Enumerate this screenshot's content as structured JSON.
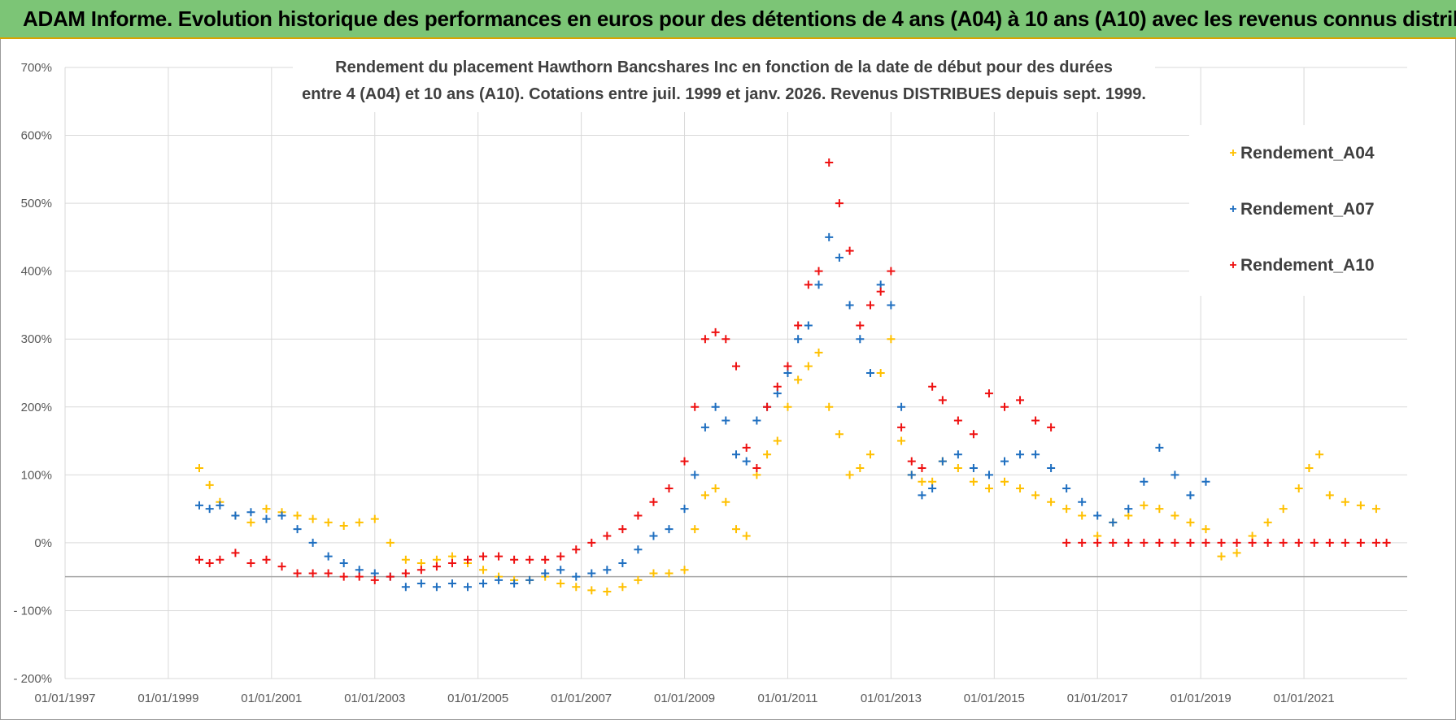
{
  "banner": {
    "title": "ADAM Informe. Evolution historique des performances en euros pour des détentions de 4 ans (A04) à 10 ans (A10) avec les revenus connus distribués"
  },
  "chart_data": {
    "type": "scatter",
    "title_line1": "Rendement du placement Hawthorn Bancshares Inc en fonction de la date de début pour des durées",
    "title_line2": "entre 4 (A04) et 10 ans (A10).  Cotations entre juil. 1999 et janv. 2026. Revenus DISTRIBUES depuis sept. 1999.",
    "xlabel": "",
    "ylabel": "",
    "x_unit": "year",
    "xlim": [
      1997.0,
      2023.0
    ],
    "ylim": [
      -200,
      700
    ],
    "y_ticks": [
      -200,
      -100,
      0,
      100,
      200,
      300,
      400,
      500,
      600,
      700
    ],
    "y_tick_labels": [
      "- 200%",
      "- 100%",
      "0%",
      "100%",
      "200%",
      "300%",
      "400%",
      "500%",
      "600%",
      "700%"
    ],
    "x_ticks": [
      1997,
      1999,
      2001,
      2003,
      2005,
      2007,
      2009,
      2011,
      2013,
      2015,
      2017,
      2019,
      2021
    ],
    "x_tick_labels": [
      "01/01/1997",
      "01/01/1999",
      "01/01/2001",
      "01/01/2003",
      "01/01/2005",
      "01/01/2007",
      "01/01/2009",
      "01/01/2011",
      "01/01/2013",
      "01/01/2015",
      "01/01/2017",
      "01/01/2019",
      "01/01/2021"
    ],
    "reference_line_y": -50,
    "legend_position": "top-right",
    "marker": "+",
    "series": [
      {
        "name": "Rendement_A04",
        "color": "#ffc000",
        "x": [
          1999.6,
          1999.8,
          2000.0,
          2000.3,
          2000.6,
          2000.9,
          2001.2,
          2001.5,
          2001.8,
          2002.1,
          2002.4,
          2002.7,
          2003.0,
          2003.3,
          2003.6,
          2003.9,
          2004.2,
          2004.5,
          2004.8,
          2005.1,
          2005.4,
          2005.7,
          2006.0,
          2006.3,
          2006.6,
          2006.9,
          2007.2,
          2007.5,
          2007.8,
          2008.1,
          2008.4,
          2008.7,
          2009.0,
          2009.2,
          2009.4,
          2009.6,
          2009.8,
          2010.0,
          2010.2,
          2010.4,
          2010.6,
          2010.8,
          2011.0,
          2011.2,
          2011.4,
          2011.6,
          2011.8,
          2012.0,
          2012.2,
          2012.4,
          2012.6,
          2012.8,
          2013.0,
          2013.2,
          2013.4,
          2013.6,
          2013.8,
          2014.0,
          2014.3,
          2014.6,
          2014.9,
          2015.2,
          2015.5,
          2015.8,
          2016.1,
          2016.4,
          2016.7,
          2017.0,
          2017.3,
          2017.6,
          2017.9,
          2018.2,
          2018.5,
          2018.8,
          2019.1,
          2019.4,
          2019.7,
          2020.0,
          2020.3,
          2020.6,
          2020.9,
          2021.1,
          2021.3,
          2021.5,
          2021.8,
          2022.1,
          2022.4
        ],
        "y": [
          110,
          85,
          60,
          40,
          30,
          50,
          45,
          40,
          35,
          30,
          25,
          30,
          35,
          0,
          -25,
          -30,
          -25,
          -20,
          -30,
          -40,
          -50,
          -55,
          -55,
          -50,
          -60,
          -65,
          -70,
          -72,
          -65,
          -55,
          -45,
          -45,
          -40,
          20,
          70,
          80,
          60,
          20,
          10,
          100,
          130,
          150,
          200,
          240,
          260,
          280,
          200,
          160,
          100,
          110,
          130,
          250,
          300,
          150,
          100,
          90,
          90,
          120,
          110,
          90,
          80,
          90,
          80,
          70,
          60,
          50,
          40,
          10,
          30,
          40,
          55,
          50,
          40,
          30,
          20,
          -20,
          -15,
          10,
          30,
          50,
          80,
          110,
          130,
          70,
          60,
          55,
          50
        ]
      },
      {
        "name": "Rendement_A07",
        "color": "#1f6fc0",
        "x": [
          1999.6,
          1999.8,
          2000.0,
          2000.3,
          2000.6,
          2000.9,
          2001.2,
          2001.5,
          2001.8,
          2002.1,
          2002.4,
          2002.7,
          2003.0,
          2003.3,
          2003.6,
          2003.9,
          2004.2,
          2004.5,
          2004.8,
          2005.1,
          2005.4,
          2005.7,
          2006.0,
          2006.3,
          2006.6,
          2006.9,
          2007.2,
          2007.5,
          2007.8,
          2008.1,
          2008.4,
          2008.7,
          2009.0,
          2009.2,
          2009.4,
          2009.6,
          2009.8,
          2010.0,
          2010.2,
          2010.4,
          2010.6,
          2010.8,
          2011.0,
          2011.2,
          2011.4,
          2011.6,
          2011.8,
          2012.0,
          2012.2,
          2012.4,
          2012.6,
          2012.8,
          2013.0,
          2013.2,
          2013.4,
          2013.6,
          2013.8,
          2014.0,
          2014.3,
          2014.6,
          2014.9,
          2015.2,
          2015.5,
          2015.8,
          2016.1,
          2016.4,
          2016.7,
          2017.0,
          2017.3,
          2017.6,
          2017.9,
          2018.2,
          2018.5,
          2018.8,
          2019.1
        ],
        "y": [
          55,
          50,
          55,
          40,
          45,
          35,
          40,
          20,
          0,
          -20,
          -30,
          -40,
          -45,
          -50,
          -65,
          -60,
          -65,
          -60,
          -65,
          -60,
          -55,
          -60,
          -55,
          -45,
          -40,
          -50,
          -45,
          -40,
          -30,
          -10,
          10,
          20,
          50,
          100,
          170,
          200,
          180,
          130,
          120,
          180,
          200,
          220,
          250,
          300,
          320,
          380,
          450,
          420,
          350,
          300,
          250,
          380,
          350,
          200,
          100,
          70,
          80,
          120,
          130,
          110,
          100,
          120,
          130,
          130,
          110,
          80,
          60,
          40,
          30,
          50,
          90,
          140,
          100,
          70,
          90
        ]
      },
      {
        "name": "Rendement_A10",
        "color": "#ee1111",
        "x": [
          1999.6,
          1999.8,
          2000.0,
          2000.3,
          2000.6,
          2000.9,
          2001.2,
          2001.5,
          2001.8,
          2002.1,
          2002.4,
          2002.7,
          2003.0,
          2003.3,
          2003.6,
          2003.9,
          2004.2,
          2004.5,
          2004.8,
          2005.1,
          2005.4,
          2005.7,
          2006.0,
          2006.3,
          2006.6,
          2006.9,
          2007.2,
          2007.5,
          2007.8,
          2008.1,
          2008.4,
          2008.7,
          2009.0,
          2009.2,
          2009.4,
          2009.6,
          2009.8,
          2010.0,
          2010.2,
          2010.4,
          2010.6,
          2010.8,
          2011.0,
          2011.2,
          2011.4,
          2011.6,
          2011.8,
          2012.0,
          2012.2,
          2012.4,
          2012.6,
          2012.8,
          2013.0,
          2013.2,
          2013.4,
          2013.6,
          2013.8,
          2014.0,
          2014.3,
          2014.6,
          2014.9,
          2015.2,
          2015.5,
          2015.8,
          2016.1,
          2016.4,
          2016.7,
          2017.0,
          2017.3,
          2017.6,
          2017.9,
          2018.2,
          2018.5,
          2018.8,
          2019.1,
          2019.4,
          2019.7,
          2020.0,
          2020.3,
          2020.6,
          2020.9,
          2021.2,
          2021.5,
          2021.8,
          2022.1,
          2022.4,
          2022.6
        ],
        "y": [
          -25,
          -30,
          -25,
          -15,
          -30,
          -25,
          -35,
          -45,
          -45,
          -45,
          -50,
          -50,
          -55,
          -50,
          -45,
          -40,
          -35,
          -30,
          -25,
          -20,
          -20,
          -25,
          -25,
          -25,
          -20,
          -10,
          0,
          10,
          20,
          40,
          60,
          80,
          120,
          200,
          300,
          310,
          300,
          260,
          140,
          110,
          200,
          230,
          260,
          320,
          380,
          400,
          560,
          500,
          430,
          320,
          350,
          370,
          400,
          170,
          120,
          110,
          230,
          210,
          180,
          160,
          220,
          200,
          210,
          180,
          170,
          0,
          0,
          0,
          0,
          0,
          0,
          0,
          0,
          0,
          0,
          0,
          0,
          0,
          0,
          0,
          0,
          0,
          0,
          0,
          0,
          0,
          0
        ]
      }
    ]
  }
}
